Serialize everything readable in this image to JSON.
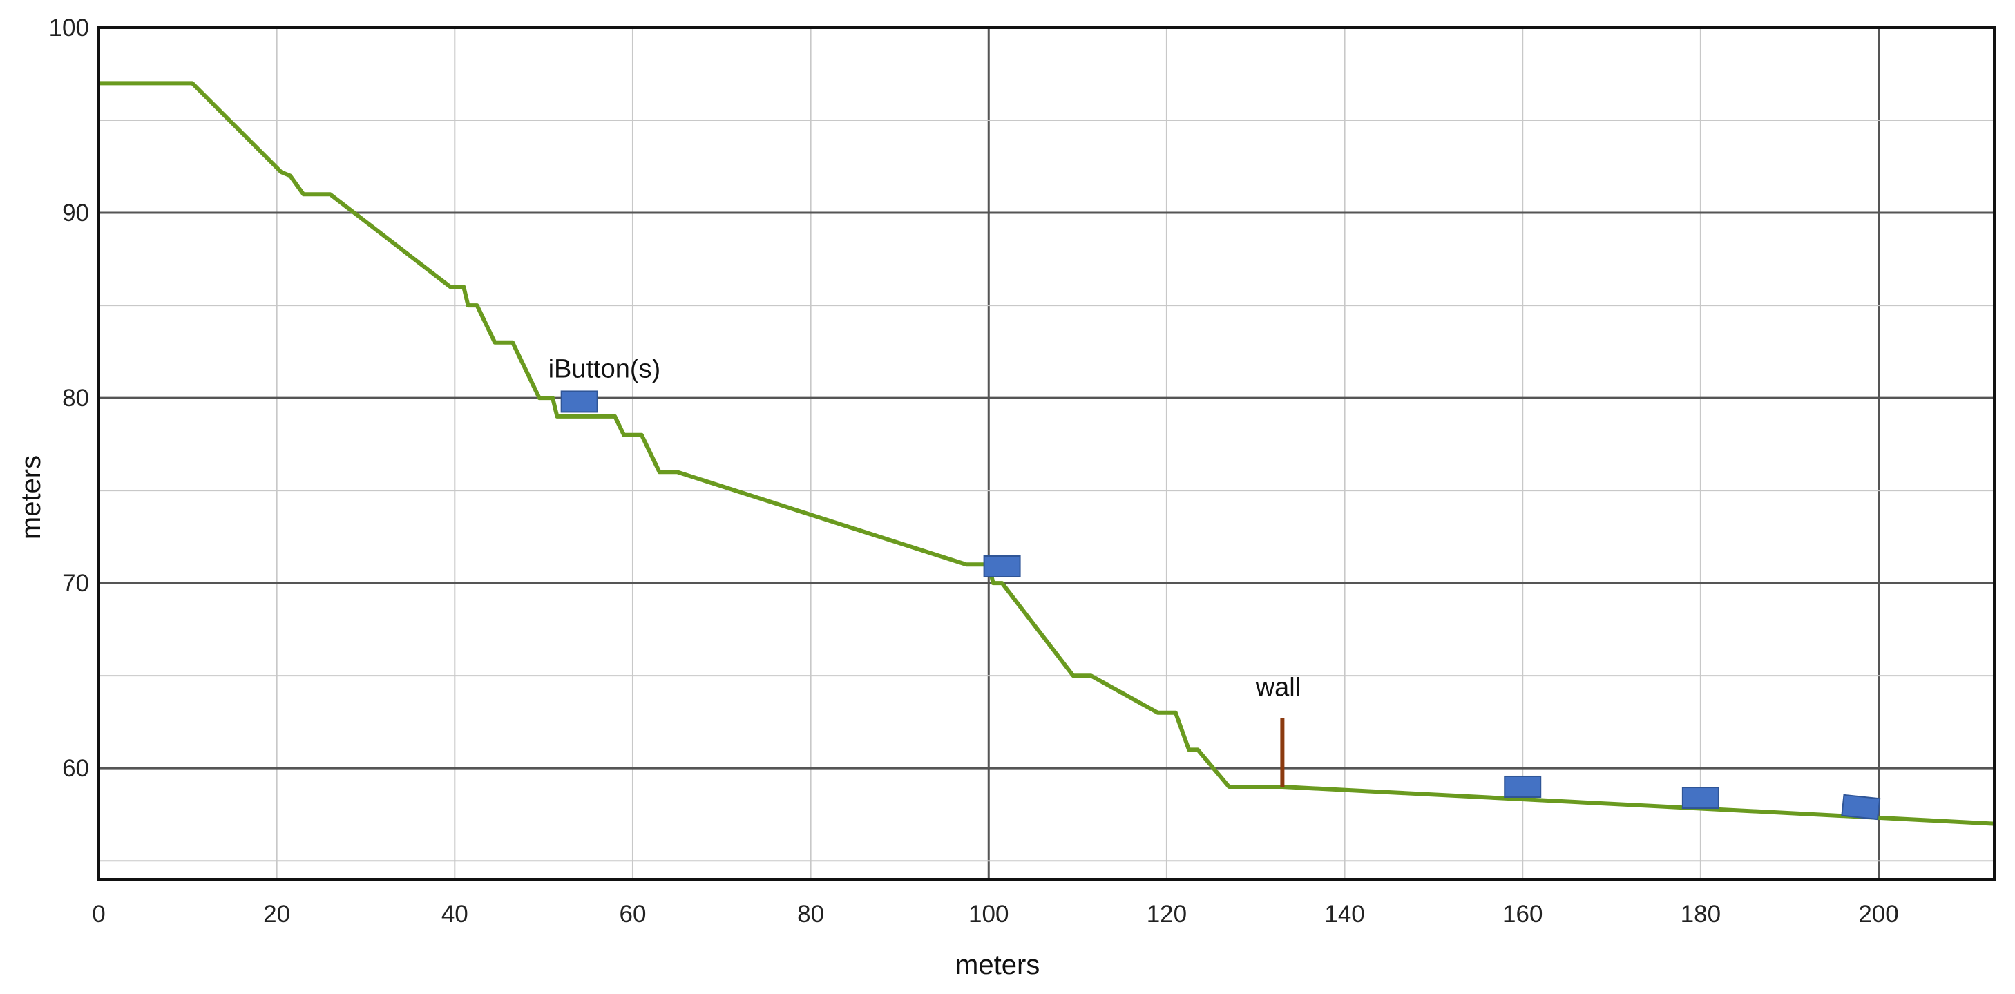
{
  "chart_data": {
    "type": "line",
    "title": "",
    "xlabel": "meters",
    "ylabel": "meters",
    "xlim": [
      0,
      213
    ],
    "ylim": [
      54,
      100
    ],
    "grid": true,
    "x_ticks": [
      0,
      20,
      40,
      60,
      80,
      100,
      120,
      140,
      160,
      180,
      200
    ],
    "y_ticks": [
      60,
      70,
      80,
      90,
      100
    ],
    "series": [
      {
        "color": "#6a9a1f",
        "points": [
          [
            0,
            97
          ],
          [
            10.5,
            97
          ],
          [
            20.5,
            92.2
          ],
          [
            21.5,
            92
          ],
          [
            23,
            91
          ],
          [
            26,
            91
          ],
          [
            39.5,
            86
          ],
          [
            41,
            86
          ],
          [
            41.5,
            85
          ],
          [
            42.5,
            85
          ],
          [
            44.5,
            83
          ],
          [
            46.5,
            83
          ],
          [
            49.5,
            80
          ],
          [
            51,
            80
          ],
          [
            51.5,
            79
          ],
          [
            58,
            79
          ],
          [
            59,
            78
          ],
          [
            61,
            78
          ],
          [
            63,
            76
          ],
          [
            65,
            76
          ],
          [
            97.5,
            71
          ],
          [
            100,
            71
          ],
          [
            100.5,
            70
          ],
          [
            101.5,
            70
          ],
          [
            109.5,
            65
          ],
          [
            111.5,
            65
          ],
          [
            119,
            63
          ],
          [
            121,
            63
          ],
          [
            122.5,
            61
          ],
          [
            123.5,
            61
          ],
          [
            127,
            59
          ],
          [
            133,
            59
          ],
          [
            213,
            57
          ]
        ]
      }
    ],
    "markers": [
      {
        "type": "ibutton",
        "x": 54,
        "y": 79.8
      },
      {
        "type": "ibutton",
        "x": 101.5,
        "y": 70.9
      },
      {
        "type": "ibutton",
        "x": 160,
        "y": 59
      },
      {
        "type": "ibutton",
        "x": 180,
        "y": 58.4
      },
      {
        "type": "ibutton",
        "x": 198,
        "y": 57.9
      }
    ],
    "annotations": [
      {
        "text": "iButton(s)"
      },
      {
        "text": "wall"
      }
    ],
    "wall": {
      "x": 133,
      "y_from": 59,
      "y_to": 62.7,
      "color": "#8b3a0f"
    },
    "marker_color": "#4472c4"
  }
}
